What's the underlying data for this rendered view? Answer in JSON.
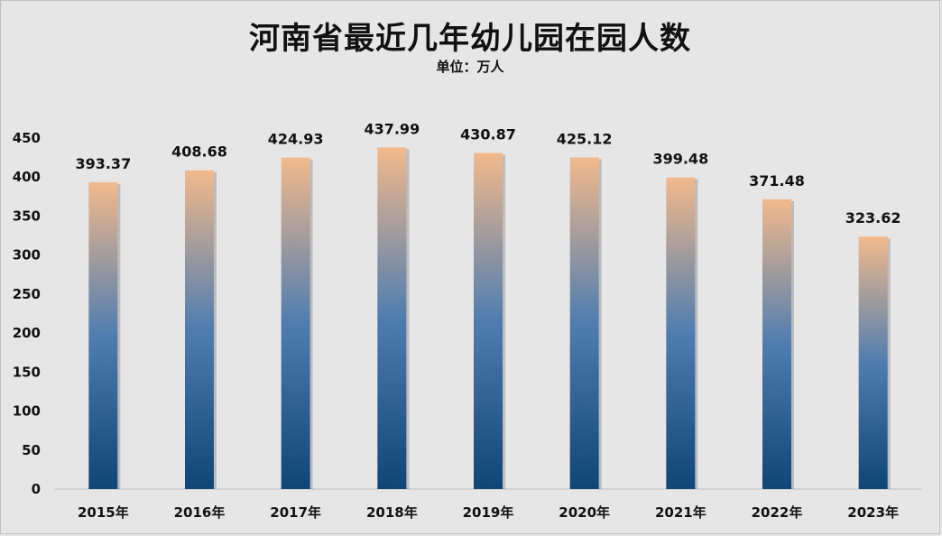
{
  "chart_data": {
    "type": "bar",
    "title": "河南省最近几年幼儿园在园人数",
    "subtitle": "单位：万人",
    "categories": [
      "2015年",
      "2016年",
      "2017年",
      "2018年",
      "2019年",
      "2020年",
      "2021年",
      "2022年",
      "2023年"
    ],
    "values": [
      393.37,
      408.68,
      424.93,
      437.99,
      430.87,
      425.12,
      399.48,
      371.48,
      323.62
    ],
    "data_labels": [
      "393.37",
      "408.68",
      "424.93",
      "437.99",
      "430.87",
      "425.12",
      "399.48",
      "371.48",
      "323.62"
    ],
    "ylim": [
      0,
      450
    ],
    "yticks": [
      0,
      50,
      100,
      150,
      200,
      250,
      300,
      350,
      400,
      450
    ],
    "grid": false,
    "legend": "none",
    "bar_gradient": {
      "top": "#f2b98b",
      "middle": "#4f7db0",
      "bottom": "#0f4577"
    }
  }
}
